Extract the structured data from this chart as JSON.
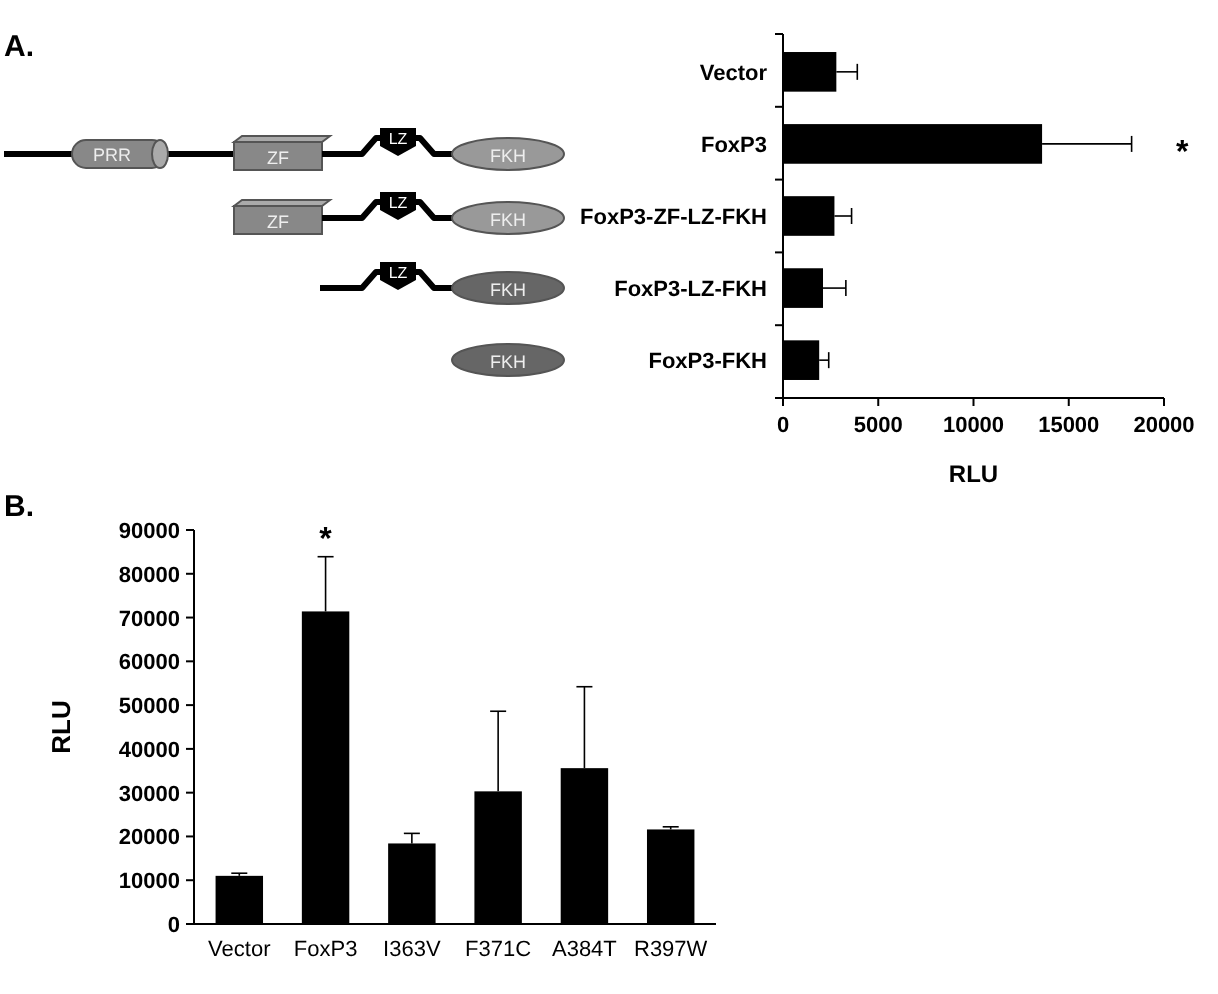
{
  "chart_data": [
    {
      "type": "bar",
      "orientation": "horizontal",
      "categories": [
        "Vector",
        "FoxP3",
        "FoxP3-ZF-LZ-FKH",
        "FoxP3-LZ-FKH",
        "FoxP3-FKH"
      ],
      "values": [
        2800,
        13600,
        2700,
        2100,
        1900
      ],
      "color": "#000000",
      "errors": [
        [
          2800,
          3900
        ],
        [
          13600,
          18300
        ],
        [
          2700,
          3600
        ],
        [
          2100,
          3300
        ],
        [
          1900,
          2400
        ]
      ],
      "xlim": [
        0,
        20000
      ],
      "xticks": [
        0,
        5000,
        10000,
        15000,
        20000
      ],
      "xlabel": "RLU",
      "annotations": [
        "A.",
        "*",
        "PRR",
        "ZF",
        "LZ",
        "FKH"
      ]
    },
    {
      "type": "bar",
      "categories": [
        "Vector",
        "FoxP3",
        "I363V",
        "F371C",
        "A384T",
        "R397W"
      ],
      "values": [
        11000,
        71400,
        18400,
        30300,
        35600,
        21600
      ],
      "color": "#000000",
      "errors": [
        [
          11000,
          11600
        ],
        [
          71400,
          83900
        ],
        [
          18400,
          20700
        ],
        [
          30300,
          48600
        ],
        [
          35600,
          54200
        ],
        [
          21600,
          22200
        ]
      ],
      "ylim": [
        0,
        90000
      ],
      "yticks": [
        0,
        10000,
        20000,
        30000,
        40000,
        50000,
        60000,
        70000,
        80000,
        90000
      ],
      "ylabel": "RLU",
      "annotations": [
        "B.",
        "*"
      ]
    }
  ]
}
